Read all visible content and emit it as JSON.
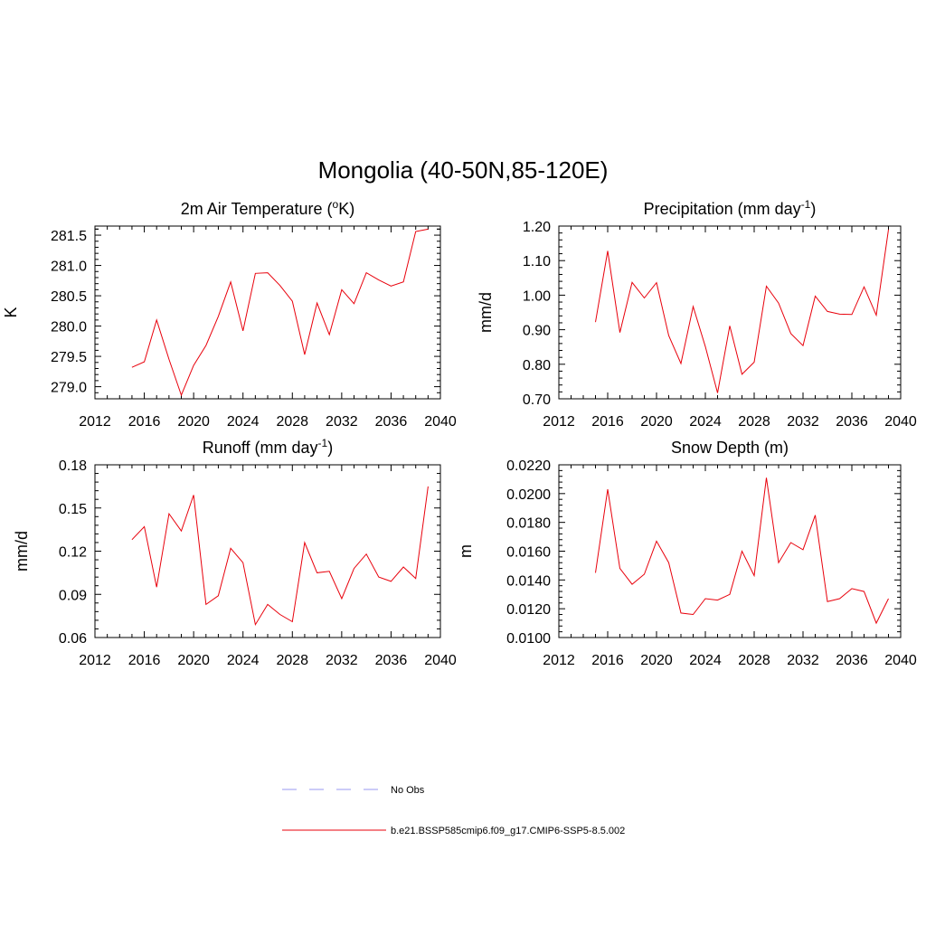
{
  "title": "Mongolia (40-50N,85-120E)",
  "colors": {
    "model": "#e8000b",
    "obs": "#9a9af0",
    "axis": "#000000"
  },
  "legend": {
    "items": [
      {
        "label": "No Obs",
        "style": "dashed",
        "color": "#9a9af0"
      },
      {
        "label": "b.e21.BSSP585cmip6.f09_g17.CMIP6-SSP5-8.5.002",
        "style": "solid",
        "color": "#e8000b"
      }
    ]
  },
  "chart_data": [
    {
      "type": "line",
      "title": "2m Air Temperature (",
      "title_sup": "o",
      "title_after": "K)",
      "ylabel": "K",
      "xlim": [
        2012,
        2040
      ],
      "ylim": [
        278.8,
        281.65
      ],
      "xticks": [
        2012,
        2016,
        2020,
        2024,
        2028,
        2032,
        2036,
        2040
      ],
      "xtick_labels": [
        "2012",
        "2016",
        "2020",
        "2024",
        "2028",
        "2032",
        "2036",
        "2040"
      ],
      "yticks": [
        279.0,
        279.5,
        280.0,
        280.5,
        281.0,
        281.5
      ],
      "ytick_labels": [
        "279.0",
        "279.5",
        "280.0",
        "280.5",
        "281.0",
        "281.5"
      ],
      "x": [
        2015,
        2016,
        2017,
        2018,
        2019,
        2020,
        2021,
        2022,
        2023,
        2024,
        2025,
        2026,
        2027,
        2028,
        2029,
        2030,
        2031,
        2032,
        2033,
        2034,
        2035,
        2036,
        2037,
        2038,
        2039
      ],
      "series": [
        {
          "values": [
            279.32,
            279.41,
            280.1,
            279.45,
            278.86,
            279.35,
            279.68,
            280.16,
            280.73,
            279.92,
            280.87,
            280.88,
            280.67,
            280.41,
            279.53,
            280.38,
            279.86,
            280.6,
            280.37,
            280.88,
            280.76,
            280.66,
            280.73,
            281.56,
            281.6
          ]
        }
      ]
    },
    {
      "type": "line",
      "title": "Precipitation (mm day",
      "title_sup": "-1",
      "title_after": ")",
      "ylabel": "mm/d",
      "xlim": [
        2012,
        2040
      ],
      "ylim": [
        0.7,
        1.2
      ],
      "xticks": [
        2012,
        2016,
        2020,
        2024,
        2028,
        2032,
        2036,
        2040
      ],
      "xtick_labels": [
        "2012",
        "2016",
        "2020",
        "2024",
        "2028",
        "2032",
        "2036",
        "2040"
      ],
      "yticks": [
        0.7,
        0.8,
        0.9,
        1.0,
        1.1,
        1.2
      ],
      "ytick_labels": [
        "0.70",
        "0.80",
        "0.90",
        "1.00",
        "1.10",
        "1.20"
      ],
      "x": [
        2015,
        2016,
        2017,
        2018,
        2019,
        2020,
        2021,
        2022,
        2023,
        2024,
        2025,
        2026,
        2027,
        2028,
        2029,
        2030,
        2031,
        2032,
        2033,
        2034,
        2035,
        2036,
        2037,
        2038,
        2039
      ],
      "series": [
        {
          "values": [
            0.922,
            1.128,
            0.892,
            1.037,
            0.992,
            1.036,
            0.883,
            0.802,
            0.967,
            0.851,
            0.717,
            0.911,
            0.771,
            0.806,
            1.026,
            0.977,
            0.889,
            0.854,
            0.997,
            0.953,
            0.945,
            0.944,
            1.024,
            0.942,
            1.19
          ]
        }
      ]
    },
    {
      "type": "line",
      "title": "Runoff (mm day",
      "title_sup": "-1",
      "title_after": ")",
      "ylabel": "mm/d",
      "xlim": [
        2012,
        2040
      ],
      "ylim": [
        0.06,
        0.18
      ],
      "xticks": [
        2012,
        2016,
        2020,
        2024,
        2028,
        2032,
        2036,
        2040
      ],
      "xtick_labels": [
        "2012",
        "2016",
        "2020",
        "2024",
        "2028",
        "2032",
        "2036",
        "2040"
      ],
      "yticks": [
        0.06,
        0.09,
        0.12,
        0.15,
        0.18
      ],
      "ytick_labels": [
        "0.06",
        "0.09",
        "0.12",
        "0.15",
        "0.18"
      ],
      "x": [
        2015,
        2016,
        2017,
        2018,
        2019,
        2020,
        2021,
        2022,
        2023,
        2024,
        2025,
        2026,
        2027,
        2028,
        2029,
        2030,
        2031,
        2032,
        2033,
        2034,
        2035,
        2036,
        2037,
        2038,
        2039
      ],
      "series": [
        {
          "values": [
            0.128,
            0.137,
            0.095,
            0.146,
            0.134,
            0.159,
            0.083,
            0.089,
            0.122,
            0.112,
            0.069,
            0.083,
            0.076,
            0.071,
            0.126,
            0.105,
            0.106,
            0.087,
            0.108,
            0.118,
            0.102,
            0.099,
            0.109,
            0.101,
            0.165
          ]
        }
      ]
    },
    {
      "type": "line",
      "title": "Snow Depth (m)",
      "title_sup": "",
      "title_after": "",
      "ylabel": "m",
      "xlim": [
        2012,
        2040
      ],
      "ylim": [
        0.01,
        0.022
      ],
      "xticks": [
        2012,
        2016,
        2020,
        2024,
        2028,
        2032,
        2036,
        2040
      ],
      "xtick_labels": [
        "2012",
        "2016",
        "2020",
        "2024",
        "2028",
        "2032",
        "2036",
        "2040"
      ],
      "yticks": [
        0.01,
        0.012,
        0.014,
        0.016,
        0.018,
        0.02,
        0.022
      ],
      "ytick_labels": [
        "0.0100",
        "0.0120",
        "0.0140",
        "0.0160",
        "0.0180",
        "0.0200",
        "0.0220"
      ],
      "x": [
        2015,
        2016,
        2017,
        2018,
        2019,
        2020,
        2021,
        2022,
        2023,
        2024,
        2025,
        2026,
        2027,
        2028,
        2029,
        2030,
        2031,
        2032,
        2033,
        2034,
        2035,
        2036,
        2037,
        2038,
        2039
      ],
      "series": [
        {
          "values": [
            0.0145,
            0.0203,
            0.0148,
            0.0137,
            0.0144,
            0.0167,
            0.0152,
            0.0117,
            0.0116,
            0.0127,
            0.0126,
            0.013,
            0.016,
            0.0143,
            0.0211,
            0.0152,
            0.0166,
            0.0161,
            0.0185,
            0.0125,
            0.0127,
            0.0134,
            0.0132,
            0.011,
            0.0127
          ]
        }
      ]
    }
  ]
}
